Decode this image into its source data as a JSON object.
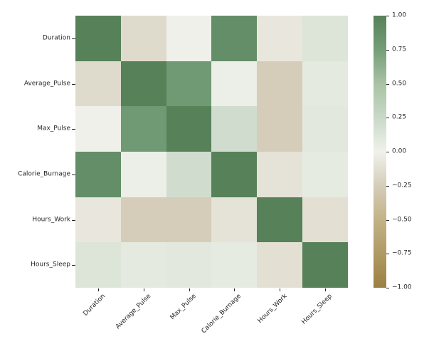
{
  "figure": {
    "background": "#ffffff",
    "text_color": "#262626"
  },
  "chart_data": {
    "type": "heatmap",
    "title": "",
    "xlabel": "",
    "ylabel": "",
    "categories": [
      "Duration",
      "Average_Pulse",
      "Max_Pulse",
      "Calorie_Burnage",
      "Hours_Work",
      "Hours_Sleep"
    ],
    "matrix": [
      [
        1.0,
        -0.155,
        0.009,
        0.89,
        -0.066,
        0.122
      ],
      [
        -0.155,
        1.0,
        0.787,
        0.025,
        -0.249,
        0.078
      ],
      [
        0.009,
        0.787,
        1.0,
        0.204,
        -0.249,
        0.091
      ],
      [
        0.89,
        0.025,
        0.204,
        1.0,
        -0.098,
        0.065
      ],
      [
        -0.066,
        -0.249,
        -0.249,
        -0.098,
        1.0,
        -0.119
      ],
      [
        0.122,
        0.078,
        0.091,
        0.065,
        -0.119,
        1.0
      ]
    ],
    "vmin": -1,
    "vmax": 1,
    "grid": false,
    "legend_position": "colorbar-right",
    "colorbar_ticks": [
      "1.00",
      "0.75",
      "0.50",
      "0.25",
      "0.00",
      "−0.25",
      "−0.50",
      "−0.75",
      "−1.00"
    ],
    "colorbar_tick_values": [
      1.0,
      0.75,
      0.5,
      0.25,
      0.0,
      -0.25,
      -0.5,
      -0.75,
      -1.0
    ],
    "colormap": {
      "name": "diverging-tan-green",
      "stops": [
        [
          -1.0,
          "#9c7f42"
        ],
        [
          -0.75,
          "#b09964"
        ],
        [
          -0.5,
          "#c3b286"
        ],
        [
          -0.25,
          "#d5cdba"
        ],
        [
          0.0,
          "#f0f1ea"
        ],
        [
          0.25,
          "#c9d9c8"
        ],
        [
          0.5,
          "#a9c2a4"
        ],
        [
          0.75,
          "#749e78"
        ],
        [
          1.0,
          "#578159"
        ]
      ]
    }
  }
}
